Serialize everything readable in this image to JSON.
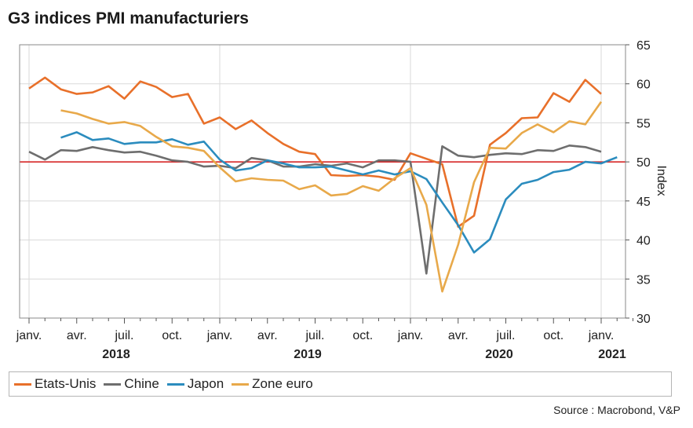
{
  "title": "G3 indices PMI manufacturiers",
  "source": "Source : Macrobond, V&P",
  "legend": [
    {
      "name": "Etats-Unis",
      "color": "#e8702a"
    },
    {
      "name": "Chine",
      "color": "#6e6e6e"
    },
    {
      "name": "Japon",
      "color": "#2b8cbe"
    },
    {
      "name": "Zone euro",
      "color": "#e8a94a"
    }
  ],
  "chart_data": {
    "type": "line",
    "y_axis_label": "Index",
    "ylim": [
      30,
      65
    ],
    "yticks": [
      30,
      35,
      40,
      45,
      50,
      55,
      60,
      65
    ],
    "x_tick_labels": [
      "janv.",
      "avr.",
      "juil.",
      "oct.",
      "janv.",
      "avr.",
      "juil.",
      "oct.",
      "janv.",
      "avr.",
      "juil.",
      "oct.",
      "janv."
    ],
    "year_labels": [
      "2018",
      "2019",
      "2020",
      "2021"
    ],
    "x_start": "2018-01",
    "reference_line": {
      "y": 50,
      "color": "#d62728"
    },
    "grid": true,
    "series": [
      {
        "name": "Etats-Unis",
        "color": "#e8702a",
        "start": "2018-01",
        "values": [
          59.4,
          60.8,
          59.3,
          58.7,
          58.9,
          59.7,
          58.1,
          60.3,
          59.6,
          58.3,
          58.7,
          54.9,
          55.7,
          54.2,
          55.3,
          53.7,
          52.3,
          51.3,
          51.0,
          48.3,
          48.2,
          48.3,
          48.1,
          47.7,
          51.1,
          50.4,
          49.7,
          41.7,
          43.1,
          52.2,
          53.7,
          55.6,
          55.7,
          58.8,
          57.7,
          60.5,
          58.7
        ]
      },
      {
        "name": "Chine",
        "color": "#6e6e6e",
        "start": "2018-01",
        "values": [
          51.3,
          50.3,
          51.5,
          51.4,
          51.9,
          51.5,
          51.2,
          51.3,
          50.8,
          50.2,
          50.0,
          49.4,
          49.5,
          49.2,
          50.5,
          50.2,
          49.4,
          49.4,
          49.7,
          49.5,
          49.8,
          49.3,
          50.2,
          50.2,
          50.0,
          35.7,
          52.0,
          50.8,
          50.6,
          50.9,
          51.1,
          51.0,
          51.5,
          51.4,
          52.1,
          51.9,
          51.3
        ]
      },
      {
        "name": "Japon",
        "color": "#2b8cbe",
        "start": "2018-03",
        "values": [
          53.1,
          53.8,
          52.8,
          53.0,
          52.3,
          52.5,
          52.5,
          52.9,
          52.2,
          52.6,
          50.3,
          48.9,
          49.2,
          50.2,
          49.8,
          49.3,
          49.3,
          49.4,
          48.9,
          48.4,
          48.9,
          48.4,
          48.8,
          47.8,
          44.8,
          41.9,
          38.4,
          40.1,
          45.2,
          47.2,
          47.7,
          48.7,
          49.0,
          50.0,
          49.8,
          50.6
        ]
      },
      {
        "name": "Zone euro",
        "color": "#e8a94a",
        "start": "2018-03",
        "values": [
          56.6,
          56.2,
          55.5,
          54.9,
          55.1,
          54.6,
          53.2,
          52.0,
          51.8,
          51.4,
          49.3,
          47.5,
          47.9,
          47.7,
          47.6,
          46.5,
          47.0,
          45.7,
          45.9,
          46.9,
          46.3,
          47.9,
          49.2,
          44.5,
          33.4,
          39.4,
          47.4,
          51.8,
          51.7,
          53.7,
          54.8,
          53.8,
          55.2,
          54.8,
          57.7
        ]
      }
    ]
  }
}
